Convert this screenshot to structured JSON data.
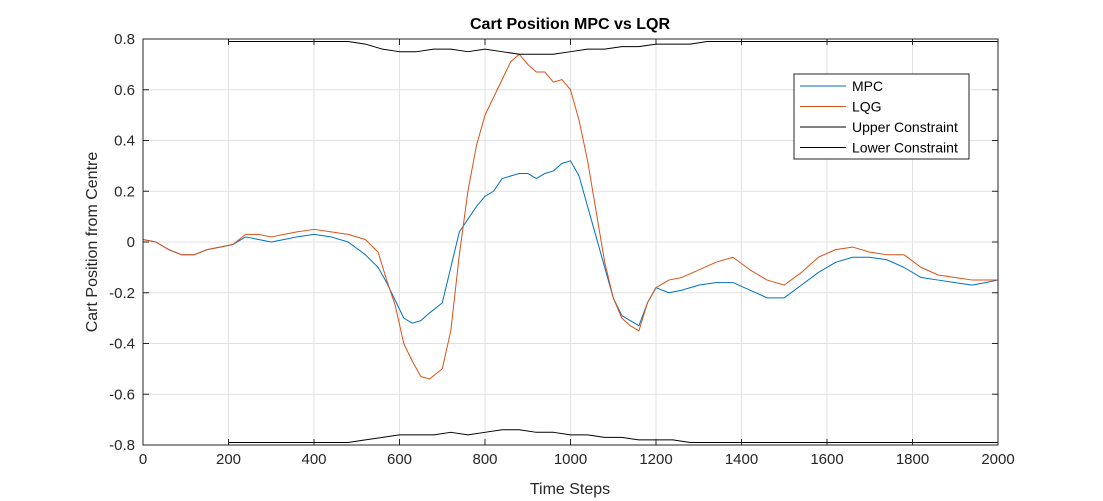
{
  "chart_data": {
    "type": "line",
    "title": "Cart Position MPC vs LQR",
    "xlabel": "Time Steps",
    "ylabel": "Cart Position from Centre",
    "xlim": [
      0,
      2000
    ],
    "ylim": [
      -0.8,
      0.8
    ],
    "x_ticks": [
      0,
      200,
      400,
      600,
      800,
      1000,
      1200,
      1400,
      1600,
      1800,
      2000
    ],
    "y_ticks": [
      -0.8,
      -0.6,
      -0.4,
      -0.2,
      0,
      0.2,
      0.4,
      0.6,
      0.8
    ],
    "grid": true,
    "legend_position": "top-right",
    "series": [
      {
        "name": "MPC",
        "color": "#0072BD",
        "x": [
          0,
          30,
          60,
          90,
          120,
          150,
          180,
          210,
          240,
          270,
          300,
          330,
          360,
          400,
          440,
          480,
          520,
          550,
          570,
          590,
          610,
          630,
          650,
          670,
          700,
          720,
          740,
          760,
          780,
          800,
          820,
          840,
          860,
          880,
          900,
          920,
          940,
          960,
          980,
          1000,
          1020,
          1040,
          1060,
          1080,
          1100,
          1120,
          1140,
          1160,
          1180,
          1200,
          1230,
          1260,
          1300,
          1340,
          1380,
          1420,
          1460,
          1500,
          1540,
          1580,
          1620,
          1660,
          1700,
          1740,
          1780,
          1820,
          1860,
          1900,
          1940,
          1970,
          2000
        ],
        "y": [
          0.01,
          0.0,
          -0.03,
          -0.05,
          -0.05,
          -0.03,
          -0.02,
          -0.01,
          0.02,
          0.01,
          0.0,
          0.01,
          0.02,
          0.03,
          0.02,
          0.0,
          -0.05,
          -0.1,
          -0.16,
          -0.23,
          -0.3,
          -0.32,
          -0.31,
          -0.28,
          -0.24,
          -0.1,
          0.04,
          0.09,
          0.14,
          0.18,
          0.2,
          0.25,
          0.26,
          0.27,
          0.27,
          0.25,
          0.27,
          0.28,
          0.31,
          0.32,
          0.26,
          0.14,
          0.02,
          -0.1,
          -0.22,
          -0.29,
          -0.31,
          -0.33,
          -0.24,
          -0.18,
          -0.2,
          -0.19,
          -0.17,
          -0.16,
          -0.16,
          -0.19,
          -0.22,
          -0.22,
          -0.17,
          -0.12,
          -0.08,
          -0.06,
          -0.06,
          -0.07,
          -0.1,
          -0.14,
          -0.15,
          -0.16,
          -0.17,
          -0.16,
          -0.15
        ]
      },
      {
        "name": "LQG",
        "color": "#D95319",
        "x": [
          0,
          30,
          60,
          90,
          120,
          150,
          180,
          210,
          240,
          270,
          300,
          330,
          360,
          400,
          440,
          480,
          520,
          550,
          570,
          590,
          610,
          630,
          650,
          670,
          700,
          720,
          740,
          760,
          780,
          800,
          820,
          840,
          860,
          880,
          900,
          920,
          940,
          960,
          980,
          1000,
          1020,
          1040,
          1060,
          1080,
          1100,
          1120,
          1140,
          1160,
          1180,
          1200,
          1230,
          1260,
          1300,
          1340,
          1380,
          1420,
          1460,
          1500,
          1540,
          1580,
          1620,
          1660,
          1700,
          1740,
          1780,
          1820,
          1860,
          1900,
          1940,
          1970,
          2000
        ],
        "y": [
          0.01,
          0.0,
          -0.03,
          -0.05,
          -0.05,
          -0.03,
          -0.02,
          -0.01,
          0.03,
          0.03,
          0.02,
          0.03,
          0.04,
          0.05,
          0.04,
          0.03,
          0.01,
          -0.04,
          -0.15,
          -0.25,
          -0.4,
          -0.47,
          -0.53,
          -0.54,
          -0.5,
          -0.35,
          -0.05,
          0.2,
          0.38,
          0.5,
          0.57,
          0.64,
          0.71,
          0.74,
          0.7,
          0.67,
          0.67,
          0.63,
          0.64,
          0.6,
          0.48,
          0.32,
          0.12,
          -0.08,
          -0.22,
          -0.3,
          -0.33,
          -0.35,
          -0.24,
          -0.18,
          -0.15,
          -0.14,
          -0.11,
          -0.08,
          -0.06,
          -0.11,
          -0.15,
          -0.17,
          -0.12,
          -0.06,
          -0.03,
          -0.02,
          -0.04,
          -0.05,
          -0.05,
          -0.1,
          -0.13,
          -0.14,
          -0.15,
          -0.15,
          -0.15
        ]
      },
      {
        "name": "Upper Constraint",
        "color": "#000000",
        "x": [
          200,
          240,
          280,
          320,
          360,
          400,
          440,
          480,
          520,
          560,
          600,
          640,
          680,
          720,
          760,
          800,
          840,
          880,
          920,
          960,
          1000,
          1040,
          1080,
          1120,
          1160,
          1200,
          1240,
          1280,
          1320,
          1360,
          1400,
          1440,
          1480,
          1520,
          1560,
          1600,
          1640,
          1680,
          1720,
          1760,
          1800,
          1840,
          1880,
          1920,
          1960,
          2000
        ],
        "y": [
          0.79,
          0.79,
          0.79,
          0.79,
          0.79,
          0.79,
          0.79,
          0.79,
          0.78,
          0.76,
          0.75,
          0.75,
          0.76,
          0.76,
          0.75,
          0.76,
          0.75,
          0.74,
          0.74,
          0.74,
          0.75,
          0.76,
          0.76,
          0.77,
          0.77,
          0.78,
          0.78,
          0.78,
          0.79,
          0.79,
          0.79,
          0.79,
          0.79,
          0.79,
          0.79,
          0.79,
          0.79,
          0.79,
          0.79,
          0.79,
          0.79,
          0.79,
          0.79,
          0.79,
          0.79,
          0.79
        ]
      },
      {
        "name": "Lower Constraint",
        "color": "#000000",
        "x": [
          200,
          240,
          280,
          320,
          360,
          400,
          440,
          480,
          520,
          560,
          600,
          640,
          680,
          720,
          760,
          800,
          840,
          880,
          920,
          960,
          1000,
          1040,
          1080,
          1120,
          1160,
          1200,
          1240,
          1280,
          1320,
          1360,
          1400,
          1440,
          1480,
          1520,
          1560,
          1600,
          1640,
          1680,
          1720,
          1760,
          1800,
          1840,
          1880,
          1920,
          1960,
          2000
        ],
        "y": [
          -0.79,
          -0.79,
          -0.79,
          -0.79,
          -0.79,
          -0.79,
          -0.79,
          -0.79,
          -0.78,
          -0.77,
          -0.76,
          -0.76,
          -0.76,
          -0.75,
          -0.76,
          -0.75,
          -0.74,
          -0.74,
          -0.75,
          -0.75,
          -0.76,
          -0.76,
          -0.77,
          -0.77,
          -0.78,
          -0.78,
          -0.78,
          -0.79,
          -0.79,
          -0.79,
          -0.79,
          -0.79,
          -0.79,
          -0.79,
          -0.79,
          -0.79,
          -0.79,
          -0.79,
          -0.79,
          -0.79,
          -0.79,
          -0.79,
          -0.79,
          -0.79,
          -0.79,
          -0.79
        ]
      }
    ]
  }
}
